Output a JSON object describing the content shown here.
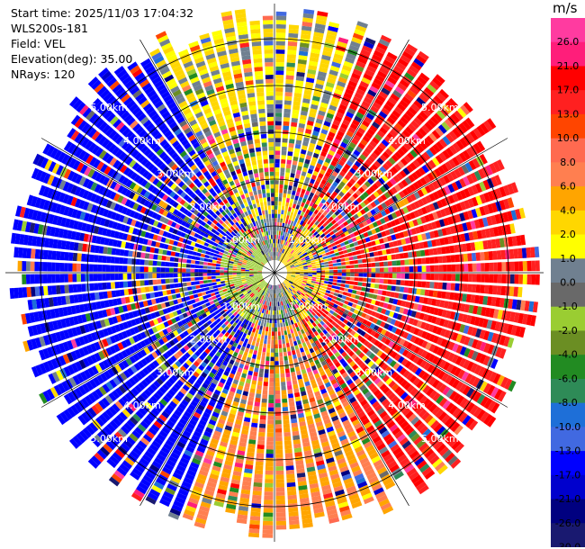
{
  "header": {
    "start_time": "Start time: 2025/11/03 17:04:32",
    "instrument": "WLS200s-181",
    "field": "Field: VEL",
    "elevation": "Elevation(deg): 35.00",
    "nrays": "NRays: 120"
  },
  "colorbar": {
    "unit": "m/s",
    "levels": [
      "26.0",
      "21.0",
      "17.0",
      "13.0",
      "10.0",
      "8.0",
      "6.0",
      "4.0",
      "2.0",
      "1.0",
      "0.0",
      "-1.0",
      "-2.0",
      "-4.0",
      "-6.0",
      "-8.0",
      "-10.0",
      "-13.0",
      "-17.0",
      "-21.0",
      "-26.0",
      "-30.0"
    ],
    "bounds": [
      30,
      26,
      21,
      17,
      13,
      10,
      8,
      6,
      4,
      2,
      1,
      0,
      -1,
      -2,
      -4,
      -6,
      -8,
      -10,
      -13,
      -17,
      -21,
      -26,
      -30
    ],
    "colors": [
      "#ff3ba0",
      "#ff1e7a",
      "#ff0000",
      "#ff2020",
      "#ff4500",
      "#ff6a50",
      "#ff7f50",
      "#ffa500",
      "#ffd700",
      "#ffff00",
      "#708090",
      "#696969",
      "#9acd32",
      "#6b8e23",
      "#228b22",
      "#2e8b57",
      "#1e6fd8",
      "#4169e1",
      "#0000ff",
      "#0000cd",
      "#000080",
      "#191970"
    ]
  },
  "chart_data": {
    "type": "heatmap",
    "projection": "polar (PPI)",
    "nrays": 120,
    "elevation_deg": 35.0,
    "range_rings_km": [
      1,
      2,
      3,
      4,
      5
    ],
    "ring_labels": [
      "1.00km",
      "2.00km",
      "3.00km",
      "4.00km",
      "5.00km"
    ],
    "max_range_km": 5.75,
    "radial_lines_every_deg": 30,
    "sectors": [
      {
        "az_from": 200,
        "az_to": 330,
        "mean_velocity": -15
      },
      {
        "az_from": 330,
        "az_to": 20,
        "mean_velocity": 2
      },
      {
        "az_from": 20,
        "az_to": 150,
        "mean_velocity": 17
      },
      {
        "az_from": 150,
        "az_to": 200,
        "mean_velocity": 6
      }
    ],
    "colorbar_unit": "m/s",
    "vmin": -30,
    "vmax": 30
  }
}
